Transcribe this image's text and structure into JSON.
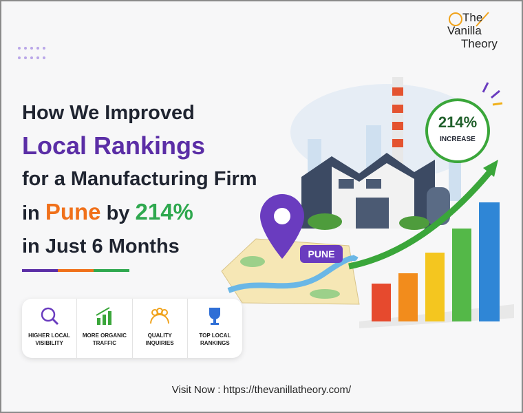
{
  "logo": [
    "The",
    "Vanilla",
    "Theory"
  ],
  "headline": {
    "line1": "How We Improved",
    "line2": "Local Rankings",
    "line3": "for a Manufacturing Firm",
    "line4": [
      "in",
      "Pune",
      "by",
      "214%"
    ],
    "line5": "in Just 6 Months"
  },
  "badge": {
    "value": "214%",
    "label": "INCREASE"
  },
  "pin_label": "PUNE",
  "features": [
    "HIGHER LOCAL VISIBILITY",
    "MORE ORGANIC TRAFFIC",
    "QUALITY INQUIRIES",
    "TOP LOCAL RANKINGS"
  ],
  "footer": "Visit Now : https://thevanillatheory.com/"
}
